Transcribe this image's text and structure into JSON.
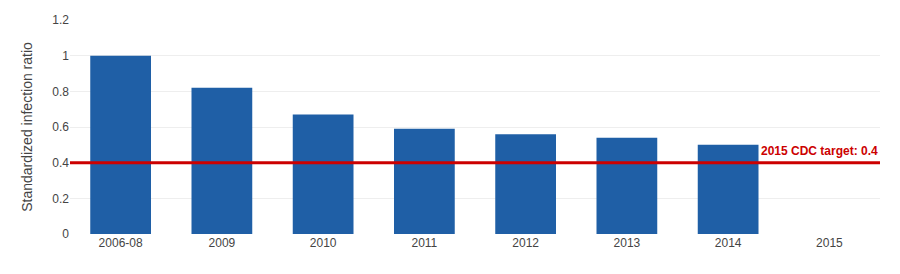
{
  "chart_data": {
    "type": "bar",
    "categories": [
      "2006-08",
      "2009",
      "2010",
      "2011",
      "2012",
      "2013",
      "2014",
      "2015"
    ],
    "values": [
      1.0,
      0.82,
      0.67,
      0.59,
      0.56,
      0.54,
      0.5,
      null
    ],
    "color": "#1f5fa6",
    "ylabel": "Standardized infection ratio",
    "ylim": [
      0,
      1.2
    ],
    "yticks": [
      0,
      0.2,
      0.4,
      0.6,
      0.8,
      1.0,
      1.2
    ],
    "grid": true,
    "target": {
      "value": 0.4,
      "label": "2015 CDC target: 0.4",
      "color": "#cc0000"
    }
  }
}
